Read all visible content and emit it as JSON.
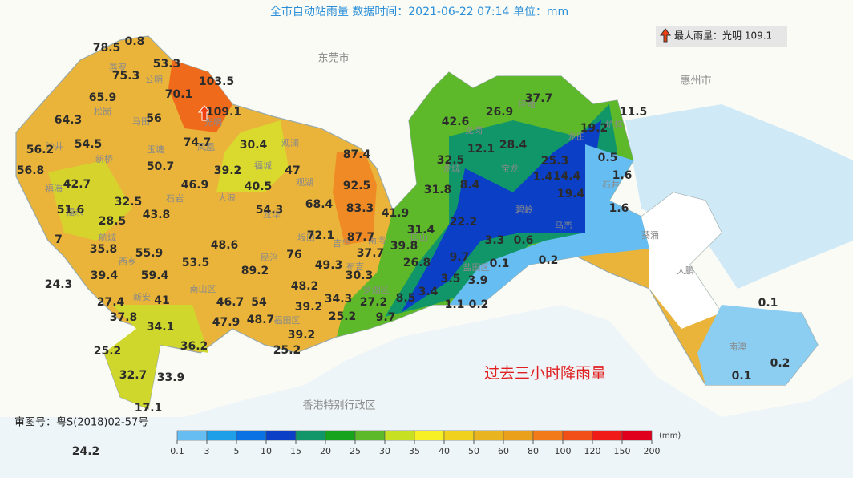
{
  "header": {
    "title": "全市自动站雨量  数据时间：2021-06-22 07:14  单位：mm"
  },
  "max_label": "最大雨量：光明 109.1",
  "cities": [
    "东莞市",
    "惠州市",
    "香港特别行政区"
  ],
  "places": [
    "燕罗",
    "公明",
    "松岗",
    "马田",
    "光明",
    "凤凰",
    "沙井",
    "新桥",
    "玉塘",
    "观澜",
    "福城",
    "福海",
    "观湖",
    "大浪",
    "石岩",
    "龙华",
    "福永",
    "航城",
    "西乡",
    "新安",
    "南山区",
    "福田区",
    "民治",
    "坂田",
    "吉华",
    "南湾",
    "布吉",
    "罗湖区",
    "园山",
    "龙城",
    "龙岗",
    "坪地",
    "龙田",
    "坑梓",
    "宝龙",
    "石井",
    "碧岭",
    "马峦",
    "盐田区",
    "葵涌",
    "大鹏",
    "南澳"
  ],
  "stations": [
    78.5,
    0.8,
    53.3,
    75.3,
    103.5,
    65.9,
    70.1,
    109.1,
    64.3,
    56,
    74.7,
    30.4,
    87.4,
    56.2,
    54.5,
    56.8,
    50.7,
    39.2,
    47,
    92.5,
    42.7,
    46.9,
    40.5,
    32.5,
    54.3,
    68.4,
    83.3,
    41.9,
    51.6,
    43.8,
    28.5,
    72.1,
    87.7,
    48.6,
    35.8,
    55.9,
    76,
    37.7,
    39.8,
    53.5,
    49.3,
    89.2,
    39.4,
    59.4,
    30.3,
    26.8,
    24.3,
    48.2,
    27.4,
    41,
    46.7,
    54,
    34.3,
    27.2,
    8.5,
    3.4,
    1.1,
    0.2,
    39.2,
    37.8,
    34.1,
    47.9,
    48.7,
    25.2,
    9.7,
    36.2,
    39.2,
    25.2,
    25.2,
    32.7,
    33.9,
    17.1,
    24.2,
    7,
    3.5,
    3.9,
    9.7,
    0.1,
    0.2,
    3.3,
    0.6,
    22.2,
    31.4,
    31.8,
    8.4,
    32.5,
    12.1,
    42.6,
    26.9,
    37.7,
    28.4,
    19.2,
    11.5,
    0.5,
    25.3,
    1.6,
    1.4,
    14.4,
    19.4,
    1.6,
    0.1,
    0.2,
    0.1
  ],
  "caption": "过去三小时降雨量",
  "approval": "审图号：粤S(2018)02-57号",
  "legend": {
    "unit": "(mm)",
    "ticks": [
      0.1,
      3,
      5,
      10,
      15,
      20,
      25,
      30,
      35,
      40,
      50,
      60,
      80,
      100,
      120,
      150,
      200
    ],
    "colors": [
      "#66bdf2",
      "#1e9fe8",
      "#0a72e2",
      "#0a3fc6",
      "#11966a",
      "#18a31c",
      "#5db82a",
      "#c7e022",
      "#f6f024",
      "#f0d21e",
      "#e8b420",
      "#eaa01a",
      "#f27a18",
      "#f24e18",
      "#f01a18",
      "#e0001e"
    ]
  }
}
